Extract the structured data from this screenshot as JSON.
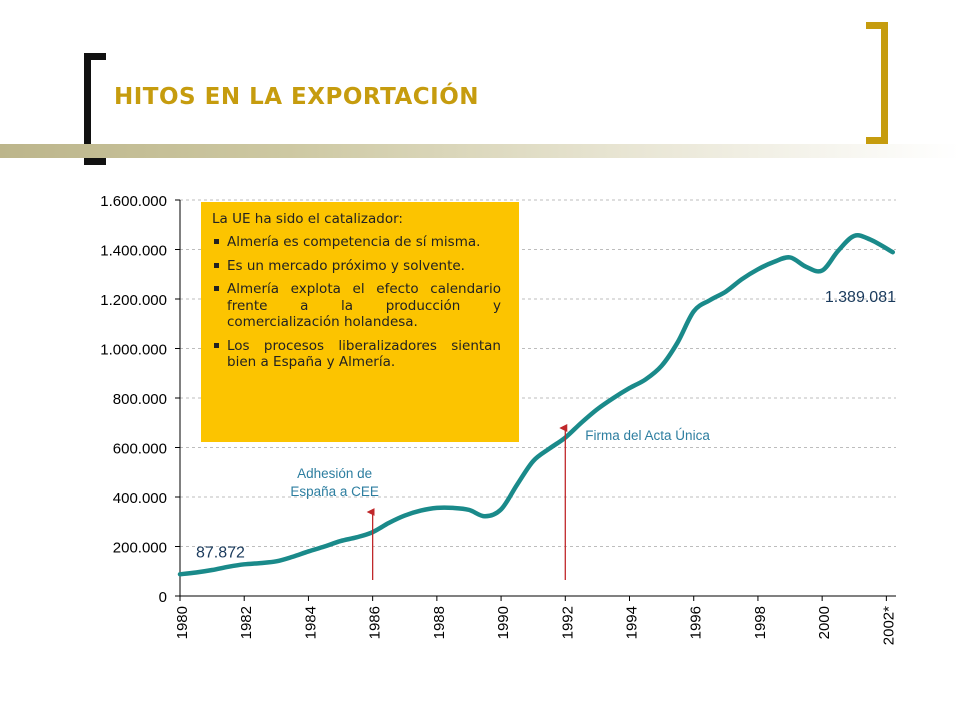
{
  "slide": {
    "title": "HITOS EN LA EXPORTACIÓN"
  },
  "colors": {
    "title": "#c69c0e",
    "bracket_left": "#111111",
    "bracket_right": "#c69c0e",
    "series_line": "#1a8a8a",
    "annotation_text": "#2d7ea0",
    "arrow": "#c0282b",
    "infobox_bg": "#fcc400"
  },
  "infobox": {
    "intro": "La UE ha sido el catalizador:",
    "bullets": [
      "Almería es competencia de sí misma.",
      "Es un mercado próximo y solvente.",
      "Almería explota el efecto calendario frente a la producción y comercialización holandesa.",
      "Los procesos liberalizadores sientan bien a España y Almería."
    ]
  },
  "chart_data": {
    "type": "line",
    "title": "",
    "xlabel": "",
    "ylabel": "",
    "xlim": [
      1980,
      2002.3
    ],
    "ylim": [
      0,
      1600000
    ],
    "grid": true,
    "y_ticks": [
      0,
      200000,
      400000,
      600000,
      800000,
      1000000,
      1200000,
      1400000,
      1600000
    ],
    "y_tick_labels": [
      "0",
      "200.000",
      "400.000",
      "600.000",
      "800.000",
      "1.000.000",
      "1.200.000",
      "1.400.000",
      "1.600.000"
    ],
    "x_ticks": [
      1980,
      1982,
      1984,
      1986,
      1988,
      1990,
      1992,
      1994,
      1996,
      1998,
      2000,
      2002
    ],
    "x_tick_labels": [
      "1980",
      "1982",
      "1984",
      "1986",
      "1988",
      "1990",
      "1992",
      "1994",
      "1996",
      "1998",
      "2000",
      "2002*"
    ],
    "series": [
      {
        "x": [
          1980,
          1980.5,
          1981,
          1981.5,
          1982,
          1982.5,
          1983,
          1983.5,
          1984,
          1984.5,
          1985,
          1985.5,
          1986,
          1986.5,
          1987,
          1987.5,
          1988,
          1988.5,
          1989,
          1989.5,
          1990,
          1990.5,
          1991,
          1991.5,
          1992,
          1992.5,
          1993,
          1993.5,
          1994,
          1994.5,
          1995,
          1995.5,
          1996,
          1996.5,
          1997,
          1997.5,
          1998,
          1998.5,
          1999,
          1999.5,
          2000,
          2000.5,
          2001,
          2001.5,
          2002.2
        ],
        "values": [
          87872,
          95000,
          105000,
          118000,
          128000,
          133000,
          140000,
          158000,
          180000,
          200000,
          222000,
          237000,
          258000,
          295000,
          325000,
          345000,
          356000,
          356000,
          348000,
          322000,
          350000,
          450000,
          545000,
          595000,
          640000,
          700000,
          755000,
          800000,
          840000,
          875000,
          930000,
          1025000,
          1150000,
          1195000,
          1230000,
          1280000,
          1320000,
          1350000,
          1368000,
          1330000,
          1315000,
          1395000,
          1455000,
          1440000,
          1389081
        ]
      }
    ],
    "data_labels": [
      {
        "text": "87.872",
        "x": 1980,
        "value": 87872
      },
      {
        "text": "1.389.081",
        "x": 2002,
        "value": 1389081
      }
    ],
    "annotations": [
      {
        "text_lines": [
          "Adhesión de",
          "España a CEE"
        ],
        "x": 1986
      },
      {
        "text_lines": [
          "Firma del Acta Única"
        ],
        "x": 1992
      }
    ]
  }
}
